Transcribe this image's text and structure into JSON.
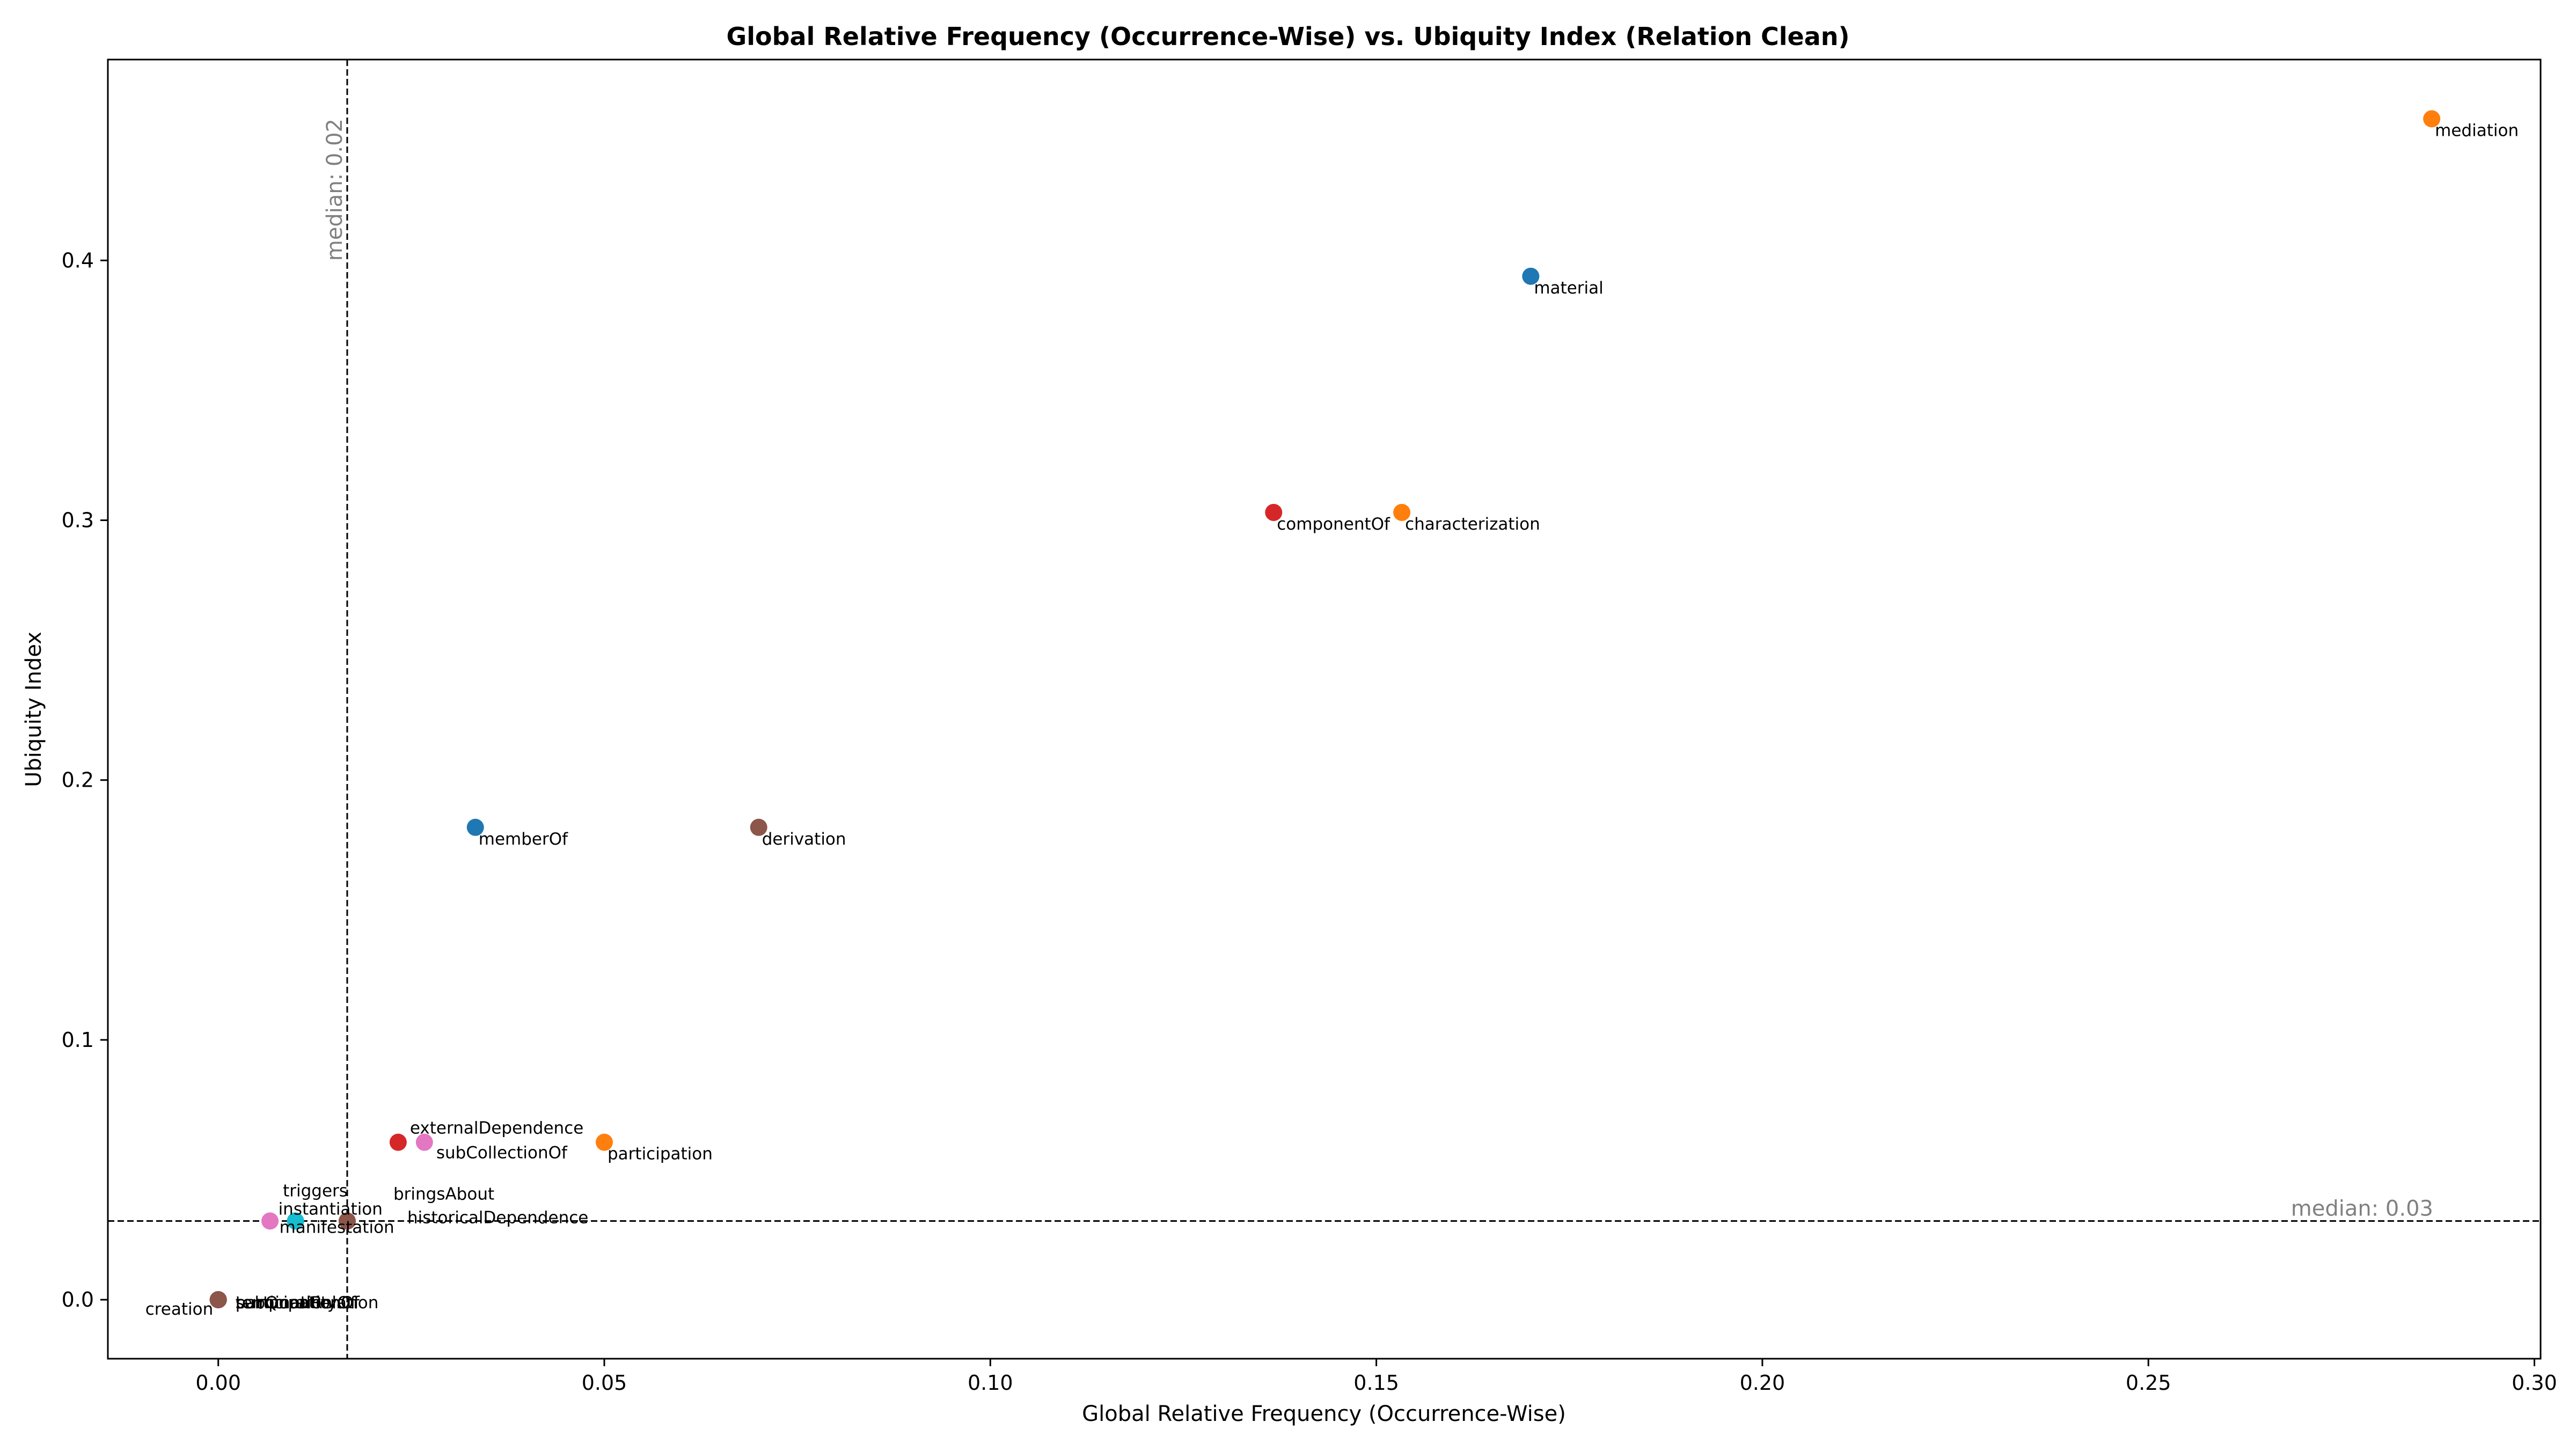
{
  "chart_data": {
    "type": "scatter",
    "title": "Global Relative Frequency (Occurrence-Wise) vs. Ubiquity Index (Relation Clean)",
    "xlabel": "Global Relative Frequency (Occurrence-Wise)",
    "ylabel": "Ubiquity Index",
    "xlim": [
      -0.0143,
      0.3008
    ],
    "ylim": [
      -0.0227,
      0.4773
    ],
    "xticks": [
      0.0,
      0.05,
      0.1,
      0.15,
      0.2,
      0.25,
      0.3
    ],
    "xtick_labels": [
      "0.00",
      "0.05",
      "0.10",
      "0.15",
      "0.20",
      "0.25",
      "0.30"
    ],
    "yticks": [
      0.0,
      0.1,
      0.2,
      0.3,
      0.4
    ],
    "ytick_labels": [
      "0.0",
      "0.1",
      "0.2",
      "0.3",
      "0.4"
    ],
    "grid": false,
    "median_x": {
      "value": 0.0167,
      "label": "median: 0.02"
    },
    "median_y": {
      "value": 0.0303,
      "label": "median: 0.03"
    },
    "colors": {
      "blue": "#1f77b4",
      "orange": "#ff7f0e",
      "red": "#d62728",
      "brown": "#8c564b",
      "pink": "#e377c2",
      "cyan": "#17becf",
      "median": "#000000",
      "median_text": "#808080"
    },
    "points": [
      {
        "name": "mediation",
        "x": 0.2867,
        "y": 0.4545,
        "color": "orange",
        "label_pos": "below-right"
      },
      {
        "name": "material",
        "x": 0.17,
        "y": 0.3939,
        "color": "blue",
        "label_pos": "below-right"
      },
      {
        "name": "componentOf",
        "x": 0.1367,
        "y": 0.303,
        "color": "red",
        "label_pos": "below-right"
      },
      {
        "name": "characterization",
        "x": 0.1533,
        "y": 0.303,
        "color": "orange",
        "label_pos": "below-right"
      },
      {
        "name": "memberOf",
        "x": 0.0333,
        "y": 0.1818,
        "color": "blue",
        "label_pos": "below-right"
      },
      {
        "name": "derivation",
        "x": 0.07,
        "y": 0.1818,
        "color": "brown",
        "label_pos": "below-right"
      },
      {
        "name": "externalDependence",
        "x": 0.0233,
        "y": 0.0606,
        "color": "red",
        "label_pos": "above-right"
      },
      {
        "name": "subCollectionOf",
        "x": 0.0267,
        "y": 0.0606,
        "color": "pink",
        "label_pos": "below-left"
      },
      {
        "name": "participation",
        "x": 0.05,
        "y": 0.0606,
        "color": "orange",
        "label_pos": "below-right"
      },
      {
        "name": "triggers",
        "x": 0.0067,
        "y": 0.0303,
        "color": "pink",
        "label_pos": "above-right-far"
      },
      {
        "name": "instantiation",
        "x": 0.01,
        "y": 0.0303,
        "color": "cyan",
        "label_pos": "above-left"
      },
      {
        "name": "manifestation",
        "x": 0.01,
        "y": 0.0303,
        "color": "cyan",
        "label_pos": "below-left"
      },
      {
        "name": "bringsAbout",
        "x": 0.0167,
        "y": 0.0303,
        "color": "brown",
        "label_pos": "above-right-far"
      },
      {
        "name": "historicalDependence",
        "x": 0.0167,
        "y": 0.0303,
        "color": "brown",
        "label_pos": "right-far"
      },
      {
        "name": "creation",
        "x": 0.0,
        "y": 0.0,
        "color": "brown",
        "label_pos": "below-left-far"
      },
      {
        "name": "participationOf",
        "x": 0.0,
        "y": 0.0,
        "color": "brown",
        "label_pos": "right-overlap"
      },
      {
        "name": "subQuantityOf",
        "x": 0.0,
        "y": 0.0,
        "color": "brown",
        "label_pos": "right-overlap"
      },
      {
        "name": "termination",
        "x": 0.0,
        "y": 0.0,
        "color": "brown",
        "label_pos": "right-overlap"
      },
      {
        "name": "temporalRelation",
        "x": 0.0,
        "y": 0.0,
        "color": "brown",
        "label_pos": "right-overlap"
      }
    ]
  }
}
